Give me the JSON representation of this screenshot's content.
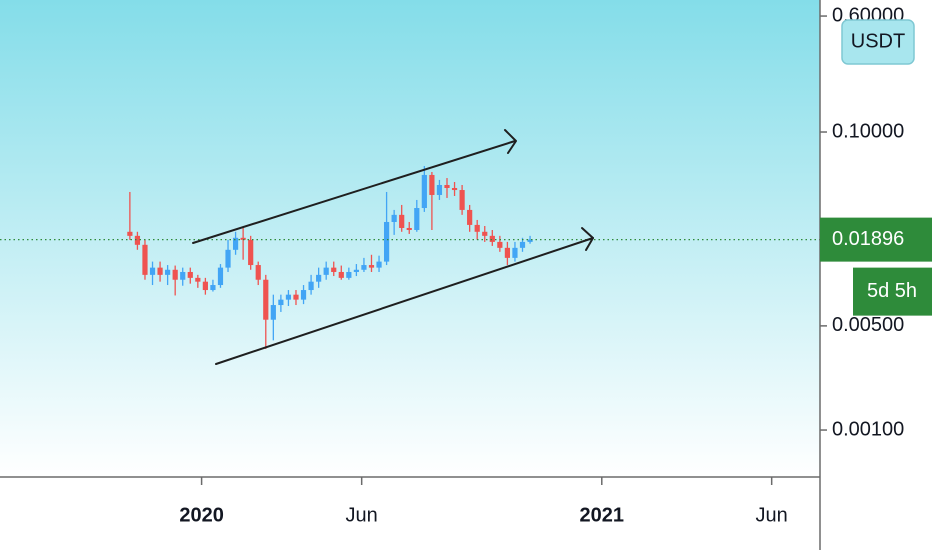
{
  "chart_data": {
    "type": "candlestick",
    "x": [
      0,
      1,
      2,
      3,
      4,
      5,
      6,
      7,
      8,
      9,
      10,
      11,
      12,
      13,
      14,
      15,
      16,
      17,
      18,
      19,
      20,
      21,
      22,
      23,
      24,
      25,
      26,
      27,
      28,
      29,
      30,
      31,
      32,
      33,
      34,
      35,
      36,
      37,
      38,
      39,
      40,
      41,
      42,
      43,
      44,
      45,
      46,
      47,
      48,
      49,
      50,
      51,
      52,
      53
    ],
    "open": [
      0.0214,
      0.0201,
      0.0175,
      0.011,
      0.0123,
      0.011,
      0.0119,
      0.0102,
      0.0115,
      0.0105,
      0.0099,
      0.0087,
      0.0094,
      0.0123,
      0.0162,
      0.0195,
      0.0189,
      0.0128,
      0.0102,
      0.0055,
      0.0069,
      0.0075,
      0.0081,
      0.0075,
      0.0087,
      0.0099,
      0.011,
      0.0123,
      0.0115,
      0.0105,
      0.0115,
      0.0119,
      0.0128,
      0.0123,
      0.0135,
      0.0249,
      0.0278,
      0.0227,
      0.022,
      0.0309,
      0.0515,
      0.0378,
      0.0441,
      0.0421,
      0.0408,
      0.03,
      0.0238,
      0.0214,
      0.0201,
      0.0183,
      0.0167,
      0.0143,
      0.0167,
      0.0183
    ],
    "high": [
      0.0396,
      0.0214,
      0.0189,
      0.0135,
      0.0135,
      0.0128,
      0.0127,
      0.0123,
      0.0123,
      0.011,
      0.0105,
      0.0102,
      0.013,
      0.0189,
      0.0214,
      0.0227,
      0.0201,
      0.0135,
      0.011,
      0.0081,
      0.0081,
      0.0087,
      0.0087,
      0.0094,
      0.011,
      0.0123,
      0.0135,
      0.0135,
      0.0127,
      0.0123,
      0.013,
      0.0143,
      0.015,
      0.0148,
      0.0396,
      0.03,
      0.0324,
      0.0249,
      0.035,
      0.0591,
      0.0539,
      0.0477,
      0.0491,
      0.0462,
      0.0441,
      0.0324,
      0.0257,
      0.0234,
      0.022,
      0.0201,
      0.0183,
      0.0183,
      0.0195,
      0.0201
    ],
    "low": [
      0.0189,
      0.0162,
      0.0102,
      0.0094,
      0.0099,
      0.0094,
      0.008,
      0.0093,
      0.0096,
      0.009,
      0.0081,
      0.0085,
      0.009,
      0.0115,
      0.015,
      0.0139,
      0.0119,
      0.0094,
      0.0035,
      0.004,
      0.0062,
      0.0068,
      0.0069,
      0.007,
      0.0081,
      0.009,
      0.0102,
      0.0108,
      0.0102,
      0.0102,
      0.0108,
      0.0115,
      0.0115,
      0.0115,
      0.0128,
      0.0204,
      0.0214,
      0.0207,
      0.0214,
      0.0291,
      0.022,
      0.035,
      0.0361,
      0.0372,
      0.0278,
      0.0214,
      0.0189,
      0.0183,
      0.0172,
      0.0157,
      0.0128,
      0.0135,
      0.0157,
      0.0178
    ],
    "close": [
      0.0201,
      0.0175,
      0.011,
      0.0123,
      0.011,
      0.0119,
      0.0102,
      0.0115,
      0.0105,
      0.0099,
      0.0087,
      0.0094,
      0.0123,
      0.0162,
      0.0195,
      0.0189,
      0.0128,
      0.0102,
      0.0055,
      0.0069,
      0.0075,
      0.0081,
      0.0075,
      0.0087,
      0.0099,
      0.011,
      0.0123,
      0.0115,
      0.0105,
      0.0115,
      0.0119,
      0.0128,
      0.0123,
      0.0135,
      0.0249,
      0.0278,
      0.0227,
      0.022,
      0.0309,
      0.0515,
      0.0378,
      0.0441,
      0.0421,
      0.0408,
      0.03,
      0.0238,
      0.0214,
      0.0201,
      0.0183,
      0.0167,
      0.0143,
      0.0167,
      0.0183,
      0.019
    ],
    "up_color": "#42a5f5",
    "down_color": "#ef5350",
    "xlim": [
      -17.2,
      91.4
    ],
    "xticks": [
      {
        "value": 9.5,
        "label": "2020"
      },
      {
        "value": 30.7,
        "label": "Jun"
      },
      {
        "value": 62.5,
        "label": "2021"
      },
      {
        "value": 85,
        "label": "Jun"
      }
    ],
    "ylim": [
      0.000484,
      0.769
    ],
    "log_scale": true,
    "yticks": [
      {
        "value": 0.6,
        "label": "0.60000"
      },
      {
        "value": 0.1,
        "label": "0.10000"
      },
      {
        "value": 0.005,
        "label": "0.00500"
      },
      {
        "value": 0.001,
        "label": "0.00100"
      }
    ],
    "price_label": {
      "value": 0.01896,
      "label": "0.01896",
      "color": "#2e8b3a"
    },
    "countdown": "5d 5h",
    "currency": "USDT"
  }
}
